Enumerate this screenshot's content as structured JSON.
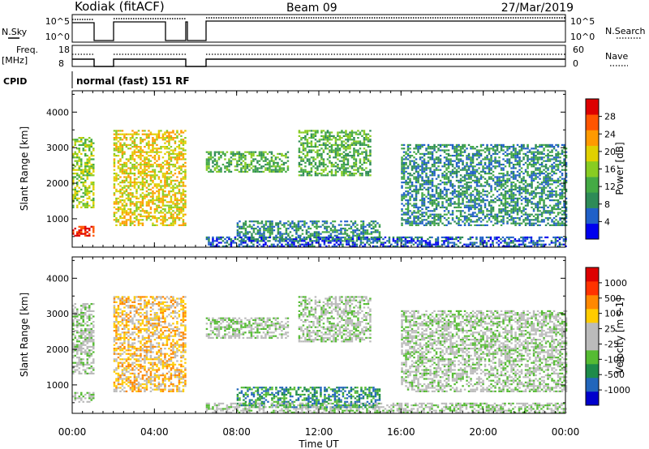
{
  "header": {
    "station": "Kodiak (fitACF)",
    "beam": "Beam 09",
    "date": "27/Mar/2019"
  },
  "top_panels": {
    "nsky_label": "N.Sky",
    "nsky_ticks": [
      "10^5",
      "10^0"
    ],
    "nsearch_label": "N.Search",
    "nsearch_ticks": [
      "10^5",
      "10^0"
    ],
    "freq_label": "Freq.",
    "freq_unit": "[MHz]",
    "freq_ticks": [
      "18",
      "8"
    ],
    "nave_label": "Nave",
    "nave_ticks": [
      "60",
      "0"
    ],
    "cpid_label": "CPID",
    "cpid_value": "normal (fast) 151 RF"
  },
  "chart_data": [
    {
      "type": "heatmap",
      "name": "power",
      "ylabel": "Slant Range [km]",
      "ylim": [
        200,
        4600
      ],
      "yticks": [
        "1000",
        "2000",
        "3000",
        "4000"
      ],
      "colorbar": {
        "label": "Power [dB]",
        "ticks": [
          "4",
          "8",
          "12",
          "16",
          "20",
          "24",
          "28"
        ],
        "colors": [
          "#0000ee",
          "#2060c8",
          "#2e8b57",
          "#44aa44",
          "#88cc22",
          "#e0d000",
          "#ff9a00",
          "#ff5500",
          "#dd0000"
        ]
      },
      "regions": [
        {
          "t": [
            0.0,
            1.0
          ],
          "r": [
            1300,
            3300
          ],
          "level": 4
        },
        {
          "t": [
            0.0,
            1.0
          ],
          "r": [
            500,
            800
          ],
          "level": 8
        },
        {
          "t": [
            2.0,
            5.5
          ],
          "r": [
            800,
            3500
          ],
          "level": 5
        },
        {
          "t": [
            6.5,
            10.5
          ],
          "r": [
            2300,
            2900
          ],
          "level": 3
        },
        {
          "t": [
            11.0,
            14.5
          ],
          "r": [
            2200,
            3500
          ],
          "level": 3
        },
        {
          "t": [
            16.0,
            24.0
          ],
          "r": [
            800,
            3100
          ],
          "level": 2
        },
        {
          "t": [
            8.0,
            15.0
          ],
          "r": [
            350,
            950
          ],
          "level": 2
        },
        {
          "t": [
            6.5,
            24.0
          ],
          "r": [
            200,
            500
          ],
          "level": 1
        }
      ]
    },
    {
      "type": "heatmap",
      "name": "velocity",
      "xlabel": "Time UT",
      "xticks": [
        "00:00",
        "04:00",
        "08:00",
        "12:00",
        "16:00",
        "20:00",
        "00:00"
      ],
      "xlim": [
        0,
        24
      ],
      "ylabel": "Slant Range [km]",
      "ylim": [
        200,
        4600
      ],
      "yticks": [
        "1000",
        "2000",
        "3000",
        "4000"
      ],
      "colorbar": {
        "label": "Velocity [m s-1]",
        "ticks": [
          "1000",
          "500",
          "100",
          "25",
          "-25",
          "-100",
          "-500",
          "-1000"
        ],
        "colors": [
          "#0000cc",
          "#2266bb",
          "#1e8b4a",
          "#55bb33",
          "#bbbbbb",
          "#bbbbbb",
          "#ffcc00",
          "#ff8800",
          "#ff3300",
          "#dd0000"
        ]
      },
      "regions": [
        {
          "t": [
            0.0,
            1.0
          ],
          "r": [
            1300,
            3300
          ],
          "level": 4
        },
        {
          "t": [
            0.0,
            1.0
          ],
          "r": [
            500,
            800
          ],
          "level": 4
        },
        {
          "t": [
            2.0,
            5.5
          ],
          "r": [
            800,
            3500
          ],
          "level": 6
        },
        {
          "t": [
            6.5,
            10.5
          ],
          "r": [
            2300,
            2900
          ],
          "level": 4
        },
        {
          "t": [
            11.0,
            14.5
          ],
          "r": [
            2200,
            3500
          ],
          "level": 4
        },
        {
          "t": [
            16.0,
            24.0
          ],
          "r": [
            800,
            3100
          ],
          "level": 4
        },
        {
          "t": [
            8.0,
            15.0
          ],
          "r": [
            350,
            950
          ],
          "level": 2
        },
        {
          "t": [
            6.5,
            24.0
          ],
          "r": [
            200,
            500
          ],
          "level": 4
        }
      ]
    }
  ]
}
